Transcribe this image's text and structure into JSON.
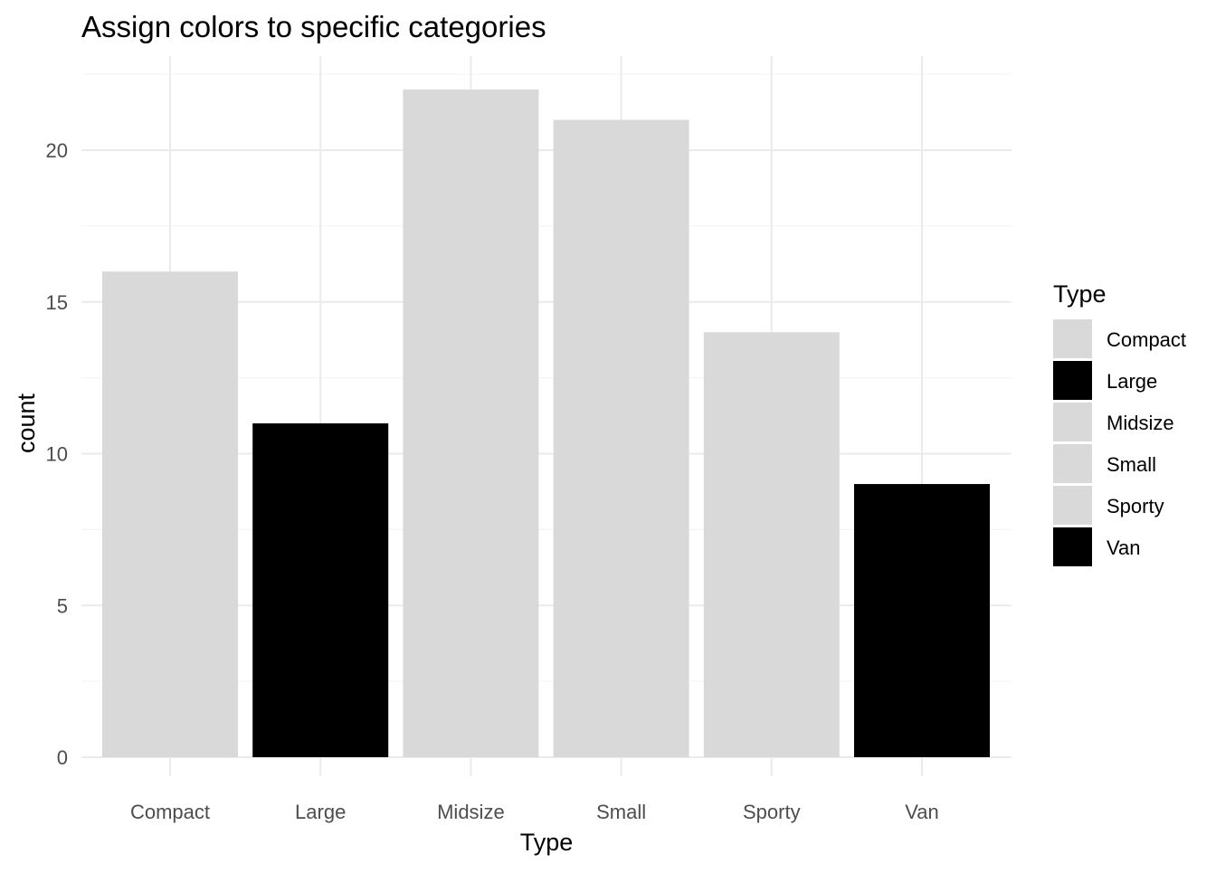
{
  "chart_data": {
    "type": "bar",
    "title": "Assign colors to specific categories",
    "xlabel": "Type",
    "ylabel": "count",
    "categories": [
      "Compact",
      "Large",
      "Midsize",
      "Small",
      "Sporty",
      "Van"
    ],
    "values": [
      16,
      11,
      22,
      21,
      14,
      9
    ],
    "bar_colors": [
      "#d9d9d9",
      "#000000",
      "#d9d9d9",
      "#d9d9d9",
      "#d9d9d9",
      "#000000"
    ],
    "ylim": [
      0,
      23.1
    ],
    "y_ticks": [
      0,
      5,
      10,
      15,
      20
    ],
    "grid": true,
    "legend": {
      "title": "Type",
      "position": "right",
      "items": [
        {
          "label": "Compact",
          "color": "#d9d9d9"
        },
        {
          "label": "Large",
          "color": "#000000"
        },
        {
          "label": "Midsize",
          "color": "#d9d9d9"
        },
        {
          "label": "Small",
          "color": "#d9d9d9"
        },
        {
          "label": "Sporty",
          "color": "#d9d9d9"
        },
        {
          "label": "Van",
          "color": "#000000"
        }
      ]
    },
    "colors": {
      "grid_major": "#ebebeb",
      "grid_minor": "#f5f5f5",
      "tick_text": "#4d4d4d"
    }
  }
}
